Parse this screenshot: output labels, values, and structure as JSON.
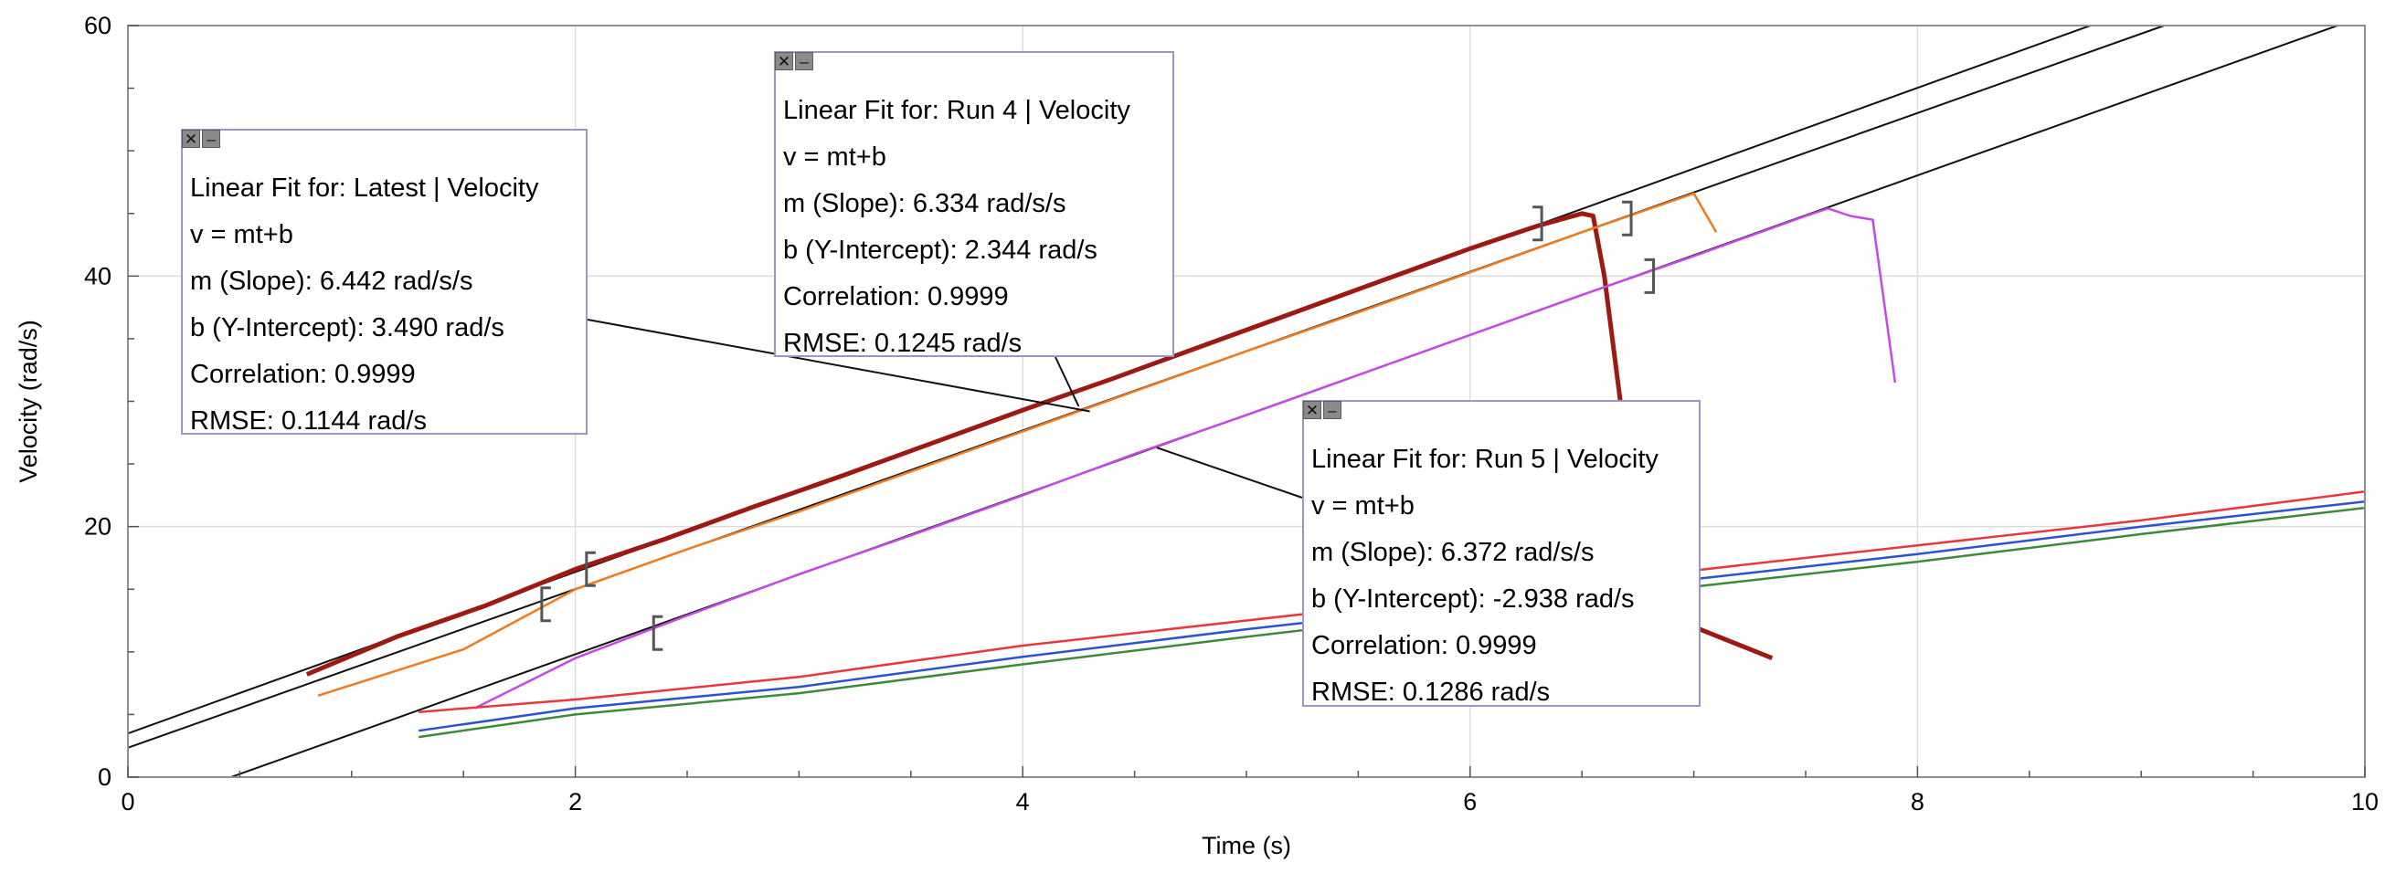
{
  "chart_data": {
    "type": "line",
    "xlabel": "Time (s)",
    "ylabel": "Velocity (rad/s)",
    "xlim": [
      0,
      10
    ],
    "ylim": [
      0,
      60
    ],
    "x_ticks": [
      "0",
      "2",
      "4",
      "6",
      "8",
      "10"
    ],
    "y_ticks": [
      "0",
      "20",
      "40",
      "60"
    ],
    "grid": true,
    "series": [
      {
        "color": "#9b1b12",
        "x": [
          0.8,
          1.2,
          1.6,
          2.0,
          2.4,
          2.8,
          3.2,
          3.6,
          4.0,
          4.4,
          4.8,
          5.2,
          5.6,
          6.0,
          6.3,
          6.5,
          6.55,
          6.6,
          6.7,
          7.0,
          7.35
        ],
        "y": [
          8.2,
          11.2,
          13.7,
          16.6,
          19.0,
          21.6,
          24.1,
          26.7,
          29.3,
          31.8,
          34.4,
          37.0,
          39.6,
          42.2,
          44.0,
          45.0,
          44.8,
          40.0,
          26.0,
          12.0,
          9.5
        ]
      },
      {
        "color": "#f07a1e",
        "x": [
          0.85,
          1.5,
          2.0,
          2.5,
          3.0,
          3.5,
          4.0,
          4.5,
          5.0,
          5.5,
          6.0,
          6.5,
          7.0,
          7.1
        ],
        "y": [
          6.5,
          10.2,
          15.0,
          18.2,
          21.2,
          24.4,
          27.6,
          30.8,
          34.0,
          37.1,
          40.3,
          43.5,
          46.6,
          43.5
        ]
      },
      {
        "color": "#c648e6",
        "x": [
          1.55,
          2.0,
          2.5,
          3.0,
          3.5,
          4.0,
          4.5,
          5.0,
          5.5,
          6.0,
          6.5,
          7.0,
          7.5,
          7.6,
          7.7,
          7.8,
          7.9
        ],
        "y": [
          5.5,
          9.5,
          12.9,
          16.2,
          19.3,
          22.5,
          25.8,
          28.9,
          32.1,
          35.3,
          38.5,
          41.6,
          44.8,
          45.4,
          44.8,
          44.5,
          31.5
        ]
      },
      {
        "color": "#e8383d",
        "x": [
          1.3,
          2,
          3,
          4,
          5,
          6,
          7,
          8,
          9,
          10
        ],
        "y": [
          5.2,
          6.2,
          8.0,
          10.5,
          12.5,
          14.5,
          16.5,
          18.5,
          20.5,
          22.8
        ]
      },
      {
        "color": "#2b52d4",
        "x": [
          1.3,
          2,
          3,
          4,
          5,
          6,
          7,
          8,
          9,
          10
        ],
        "y": [
          3.7,
          5.5,
          7.2,
          9.6,
          11.8,
          13.8,
          15.8,
          17.8,
          20.0,
          22.0
        ]
      },
      {
        "color": "#3d8a3a",
        "x": [
          1.3,
          2,
          3,
          4,
          5,
          6,
          7,
          8,
          9,
          10
        ],
        "y": [
          3.2,
          5.0,
          6.7,
          9.0,
          11.2,
          13.3,
          15.2,
          17.2,
          19.4,
          21.5
        ]
      }
    ],
    "fits": [
      {
        "title": "Linear Fit for: Latest | Velocity",
        "equation": "v = mt+b",
        "slope": "m (Slope): 6.442 rad/s/s",
        "intercept": "b (Y-Intercept): 3.490 rad/s",
        "correlation": "Correlation: 0.9999",
        "rmse": "RMSE: 0.1144 rad/s",
        "m": 6.442,
        "b": 3.49
      },
      {
        "title": "Linear Fit for: Run 4 | Velocity",
        "equation": "v = mt+b",
        "slope": "m (Slope): 6.334 rad/s/s",
        "intercept": "b (Y-Intercept): 2.344 rad/s",
        "correlation": "Correlation: 0.9999",
        "rmse": "RMSE: 0.1245 rad/s",
        "m": 6.334,
        "b": 2.344
      },
      {
        "title": "Linear Fit for: Run 5 | Velocity",
        "equation": "v = mt+b",
        "slope": "m (Slope): 6.372 rad/s/s",
        "intercept": "b (Y-Intercept): -2.938 rad/s",
        "correlation": "Correlation: 0.9999",
        "rmse": "RMSE: 0.1286 rad/s",
        "m": 6.372,
        "b": -2.938
      }
    ]
  },
  "ui": {
    "close_glyph": "✕",
    "minimize_glyph": "–"
  }
}
